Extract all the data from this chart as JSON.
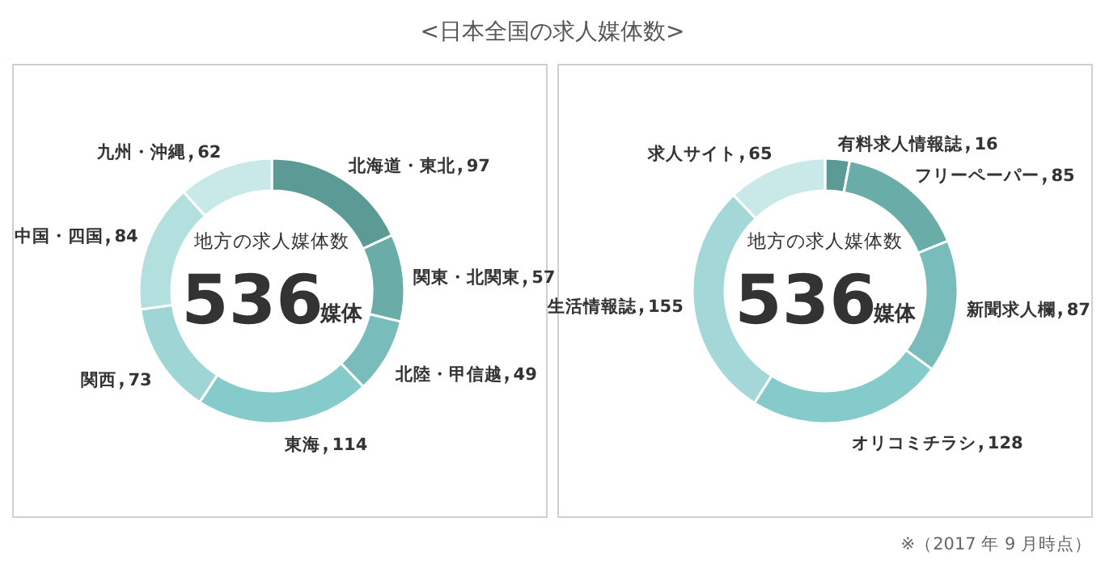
{
  "chart_data": [
    {
      "type": "donut",
      "title": "<日本全国の求人媒体数>",
      "categories": [
        "北海道・東北",
        "関東・北関東",
        "北陸・甲信越",
        "東海",
        "関西",
        "中国・四国",
        "九州・沖縄"
      ],
      "values": [
        97,
        57,
        49,
        114,
        73,
        84,
        62
      ],
      "colors": [
        "#5b9a95",
        "#6aaca8",
        "#78bcbb",
        "#86cbcb",
        "#9fd5d5",
        "#b4dfdf",
        "#c9e8e8"
      ],
      "data_labels": true,
      "annotations": [
        "地方の求人媒体数",
        "536",
        "媒体"
      ]
    },
    {
      "type": "donut",
      "categories": [
        "有料求人情報誌",
        "フリーペーパー",
        "新聞求人欄",
        "オリコミチラシ",
        "生活情報誌",
        "求人サイト"
      ],
      "values": [
        16,
        85,
        87,
        128,
        155,
        65
      ],
      "colors": [
        "#5b9a95",
        "#6aaca8",
        "#78bcbb",
        "#86cbcb",
        "#a4d8d8",
        "#c9e8e8"
      ],
      "data_labels": true,
      "annotations": [
        "地方の求人媒体数",
        "536",
        "媒体",
        "※（2017 年 9 月時点）"
      ]
    }
  ]
}
